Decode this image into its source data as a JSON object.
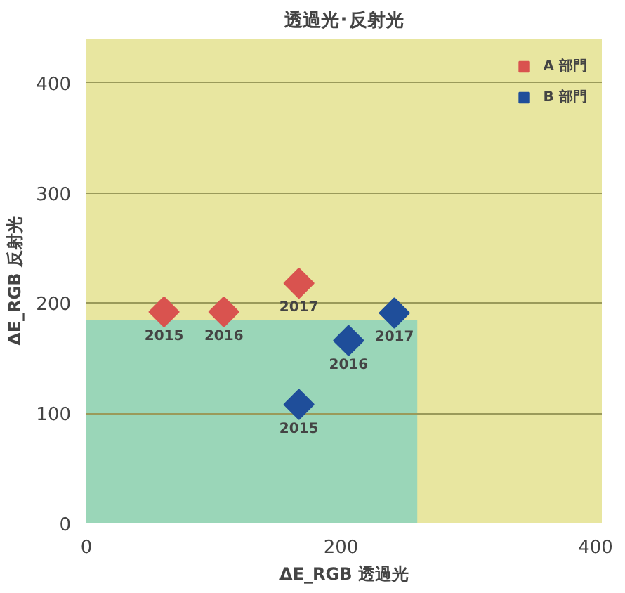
{
  "chart_data": {
    "type": "scatter",
    "title": "透過光･反射光",
    "xlabel": "ΔE_RGB 透過光",
    "ylabel": "ΔE_RGB 反射光",
    "xlim": [
      0,
      405
    ],
    "ylim": [
      0,
      440
    ],
    "xticks": [
      0,
      200,
      400
    ],
    "yticks": [
      0,
      100,
      200,
      300,
      400
    ],
    "grid": "y",
    "legend": "top right",
    "marker": "diamond",
    "series": [
      {
        "type": "area",
        "marker": "none",
        "color": "#9ad6b8",
        "x": [
          0,
          260
        ],
        "values": [
          185,
          185
        ]
      },
      {
        "name": "A 部門",
        "color": "#d9534f",
        "x": [
          61,
          108,
          167
        ],
        "values": [
          192,
          192,
          218
        ]
      },
      {
        "name": "B 部門",
        "color": "#1f4e9a",
        "x": [
          167,
          206,
          242
        ],
        "values": [
          108,
          166,
          191
        ]
      }
    ],
    "annotations": [
      {
        "text": "2015",
        "x": 61,
        "y": 192
      },
      {
        "text": "2016",
        "x": 108,
        "y": 192
      },
      {
        "text": "2017",
        "x": 167,
        "y": 218
      },
      {
        "text": "2015",
        "x": 167,
        "y": 108
      },
      {
        "text": "2016",
        "x": 206,
        "y": 166
      },
      {
        "text": "2017",
        "x": 242,
        "y": 191
      }
    ]
  }
}
